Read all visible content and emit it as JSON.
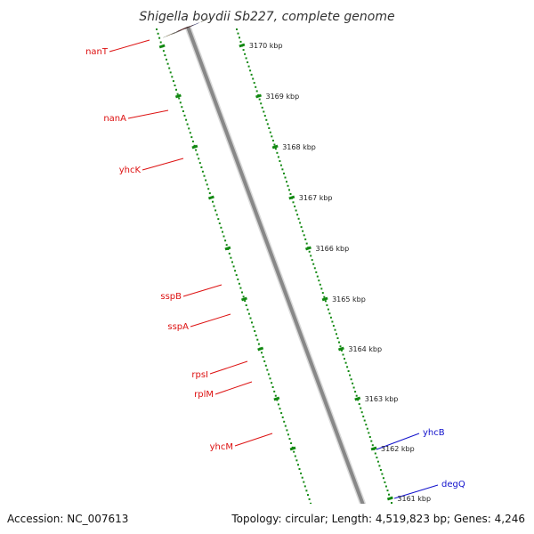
{
  "title": "Shigella boydii Sb227, complete genome",
  "footer": {
    "accession": "Accession: NC_007613",
    "topology": "Topology: circular; Length: 4,519,823 bp; Genes: 4,246"
  },
  "ruler_labels": [
    "3170 kbp",
    "3169 kbp",
    "3168 kbp",
    "3167 kbp",
    "3166 kbp",
    "3165 kbp",
    "3164 kbp",
    "3163 kbp",
    "3162 kbp",
    "3161 kbp"
  ],
  "left_labels": [
    "nanT",
    "nanA",
    "yhcK",
    "sspB",
    "sspA",
    "rpsI",
    "rplM",
    "yhcM"
  ],
  "right_labels": [
    "yhcB",
    "degQ"
  ],
  "colors": {
    "backbone": "#888888",
    "ruler_green": "#118811",
    "label_red": "#dd1111",
    "label_blue": "#1111cc",
    "cds_red": "#ee0000",
    "olive": "#6b8e23",
    "steel_blue": "#4a7fb5",
    "orange": "#ff9900",
    "light_gray": "#c8c8c8",
    "khaki": "#c4c07a",
    "pink": "#ee8888",
    "blue": "#0000ee",
    "dark_gray": "#555555"
  }
}
